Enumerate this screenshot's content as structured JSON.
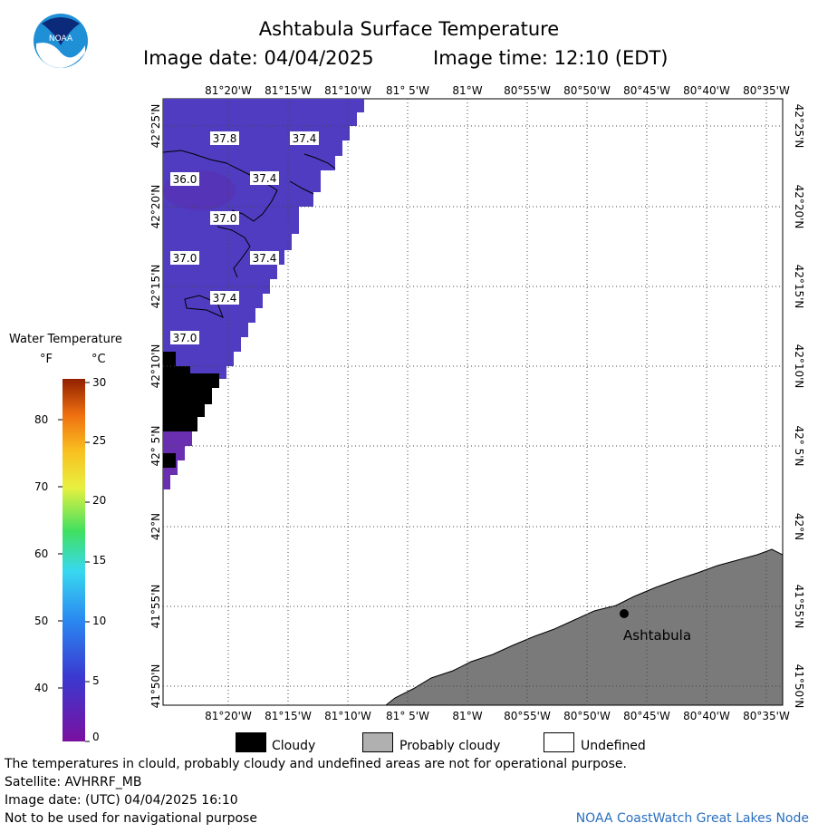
{
  "header": {
    "title": "Ashtabula Surface Temperature",
    "image_date": "Image date: 04/04/2025",
    "image_time": "Image time: 12:10 (EDT)"
  },
  "logo": {
    "text": "NOAA"
  },
  "map": {
    "top_lon_labels": [
      "81°20'W",
      "81°15'W",
      "81°10'W",
      "81° 5'W",
      "81°W",
      "80°55'W",
      "80°50'W",
      "80°45'W",
      "80°40'W",
      "80°35'W"
    ],
    "bottom_lon_labels": [
      "81°20'W",
      "81°15'W",
      "81°10'W",
      "81° 5'W",
      "81°W",
      "80°55'W",
      "80°50'W",
      "80°45'W",
      "80°40'W",
      "80°35'W"
    ],
    "left_lat_labels": [
      "42°25'N",
      "42°20'N",
      "42°15'N",
      "42°10'N",
      "42° 5'N",
      "42°N",
      "41°55'N",
      "41°50'N"
    ],
    "right_lat_labels": [
      "42°25'N",
      "42°20'N",
      "42°15'N",
      "42°10'N",
      "42° 5'N",
      "42°N",
      "41°55'N",
      "41°50'N"
    ],
    "contour_labels": [
      "37.8",
      "37.4",
      "36.0",
      "37.4",
      "37.0",
      "37.0",
      "37.4",
      "37.4",
      "37.0"
    ],
    "city_label": "Ashtabula",
    "colors": {
      "water": "#4b34b8",
      "water_dark": "#5a2fb0",
      "land": "#7a7a7a",
      "cloud": "#000000",
      "undefined": "#ffffff"
    }
  },
  "legend": {
    "title": "Water Temperature",
    "unit_f": "°F",
    "unit_c": "°C",
    "f_ticks": [
      "80",
      "70",
      "60",
      "50",
      "40"
    ],
    "c_ticks": [
      "30",
      "25",
      "20",
      "15",
      "10",
      "5",
      "0"
    ]
  },
  "key": {
    "cloudy": "Cloudy",
    "probably_cloudy": "Probably cloudy",
    "undefined": "Undefined"
  },
  "footer": {
    "line1": "The temperatures in clould, probably cloudy and undefined areas are not for operational purpose.",
    "line2": "Satellite: AVHRRF_MB",
    "line3": "Image date: (UTC) 04/04/2025  16:10",
    "line4": "Not to be used for navigational purpose",
    "credit": "NOAA CoastWatch Great Lakes Node"
  }
}
